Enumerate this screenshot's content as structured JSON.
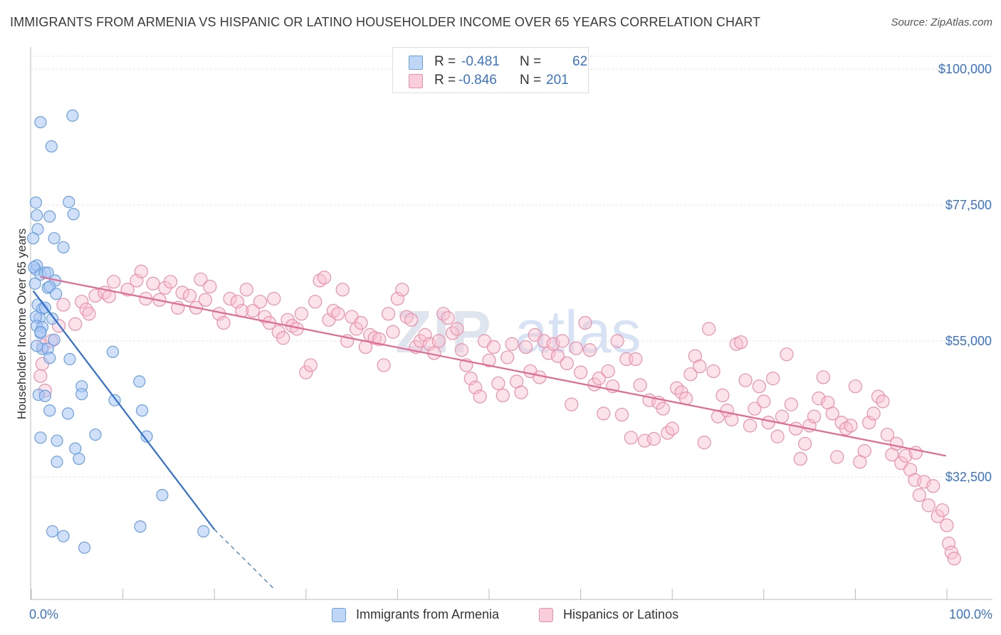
{
  "title": "IMMIGRANTS FROM ARMENIA VS HISPANIC OR LATINO HOUSEHOLDER INCOME OVER 65 YEARS CORRELATION CHART",
  "source": "Source: ZipAtlas.com",
  "legend_top": [
    {
      "r_label": "R =",
      "r_value": "-0.481",
      "n_label": "N =",
      "n_value": "62"
    },
    {
      "r_label": "R =",
      "r_value": "-0.846",
      "n_label": "N =",
      "n_value": "201"
    }
  ],
  "colors": {
    "armenia_fill": "#a9c6f2",
    "armenia_stroke": "#6a9fe0",
    "armenia_line": "#2f6fd0",
    "hispanic_fill": "#f7c0d0",
    "hispanic_stroke": "#ec8fab",
    "hispanic_line": "#e06a92",
    "tick_text": "#3b73c6",
    "grid": "#e3e3e3"
  },
  "chart_data": {
    "type": "scatter",
    "xlabel": "",
    "ylabel": "Householder Income Over 65 years",
    "xlim": [
      0,
      100
    ],
    "ylim": [
      13500,
      103000
    ],
    "x_tick_labels": [
      "0.0%",
      "100.0%"
    ],
    "y_ticks": [
      32500,
      55000,
      77500,
      100000
    ],
    "y_tick_labels": [
      "$32,500",
      "$55,000",
      "$77,500",
      "$100,000"
    ],
    "grid": true,
    "legend_position": "bottom",
    "watermark": "ZIPatlas",
    "series": [
      {
        "name": "Immigrants from Armenia",
        "trend": {
          "x": [
            0.2,
            20.0
          ],
          "y": [
            63300,
            23800
          ],
          "dashed_to": {
            "x": 26.5,
            "y": 14000
          }
        },
        "points": [
          [
            1.0,
            91200
          ],
          [
            4.5,
            92300
          ],
          [
            2.2,
            87200
          ],
          [
            0.5,
            77900
          ],
          [
            4.1,
            78000
          ],
          [
            2.0,
            75600
          ],
          [
            0.6,
            75800
          ],
          [
            4.6,
            76000
          ],
          [
            0.7,
            73500
          ],
          [
            3.5,
            70500
          ],
          [
            0.2,
            72000
          ],
          [
            2.5,
            72000
          ],
          [
            0.5,
            66800
          ],
          [
            0.6,
            67500
          ],
          [
            0.3,
            67200
          ],
          [
            1.0,
            66000
          ],
          [
            1.5,
            66300
          ],
          [
            1.8,
            66300
          ],
          [
            2.6,
            65000
          ],
          [
            0.4,
            64500
          ],
          [
            1.8,
            63800
          ],
          [
            2.0,
            64000
          ],
          [
            2.7,
            62800
          ],
          [
            0.7,
            61000
          ],
          [
            1.2,
            60300
          ],
          [
            1.5,
            60500
          ],
          [
            0.9,
            58800
          ],
          [
            0.5,
            59000
          ],
          [
            0.6,
            57500
          ],
          [
            1.2,
            57300
          ],
          [
            1.0,
            56300
          ],
          [
            2.3,
            58700
          ],
          [
            2.5,
            55200
          ],
          [
            1.2,
            53700
          ],
          [
            1.8,
            53700
          ],
          [
            0.6,
            54200
          ],
          [
            2.0,
            52200
          ],
          [
            4.2,
            52000
          ],
          [
            8.9,
            53200
          ],
          [
            5.5,
            47500
          ],
          [
            11.8,
            48300
          ],
          [
            0.8,
            46100
          ],
          [
            1.5,
            45900
          ],
          [
            5.5,
            46200
          ],
          [
            9.1,
            45200
          ],
          [
            12.1,
            43500
          ],
          [
            4.0,
            43000
          ],
          [
            2.0,
            43500
          ],
          [
            1.0,
            39000
          ],
          [
            2.8,
            38500
          ],
          [
            7.0,
            39500
          ],
          [
            12.6,
            39200
          ],
          [
            4.8,
            37200
          ],
          [
            5.2,
            35500
          ],
          [
            2.8,
            35000
          ],
          [
            14.3,
            29500
          ],
          [
            2.3,
            23500
          ],
          [
            3.5,
            22700
          ],
          [
            11.9,
            24300
          ],
          [
            18.8,
            23500
          ],
          [
            5.8,
            20800
          ],
          [
            1.0,
            56500
          ]
        ]
      },
      {
        "name": "Hispanics or Latinos",
        "trend": {
          "x": [
            1.0,
            99.9
          ],
          "y": [
            65600,
            36000
          ]
        },
        "points": [
          [
            1.3,
            54200
          ],
          [
            2.2,
            55000
          ],
          [
            1.2,
            51200
          ],
          [
            1.0,
            49200
          ],
          [
            1.5,
            46800
          ],
          [
            3.0,
            57500
          ],
          [
            3.5,
            61000
          ],
          [
            4.8,
            57800
          ],
          [
            5.5,
            61500
          ],
          [
            6.0,
            60200
          ],
          [
            6.3,
            59500
          ],
          [
            7.0,
            62500
          ],
          [
            8.0,
            63000
          ],
          [
            8.5,
            62400
          ],
          [
            9.0,
            64800
          ],
          [
            10.5,
            63500
          ],
          [
            11.5,
            65000
          ],
          [
            12.0,
            66500
          ],
          [
            12.5,
            62000
          ],
          [
            13.3,
            64500
          ],
          [
            14.0,
            61800
          ],
          [
            14.6,
            63800
          ],
          [
            15.2,
            64800
          ],
          [
            16.0,
            60500
          ],
          [
            16.5,
            63000
          ],
          [
            17.3,
            62500
          ],
          [
            18.0,
            60500
          ],
          [
            18.5,
            65200
          ],
          [
            19.0,
            61800
          ],
          [
            19.5,
            64000
          ],
          [
            20.5,
            59500
          ],
          [
            21.0,
            58000
          ],
          [
            21.7,
            62000
          ],
          [
            22.5,
            61500
          ],
          [
            23.0,
            60000
          ],
          [
            23.5,
            63500
          ],
          [
            24.2,
            60000
          ],
          [
            25.0,
            61500
          ],
          [
            25.5,
            59000
          ],
          [
            26.0,
            58000
          ],
          [
            26.5,
            62000
          ],
          [
            27.0,
            56500
          ],
          [
            27.5,
            55500
          ],
          [
            28.0,
            58500
          ],
          [
            28.5,
            57500
          ],
          [
            29.0,
            57000
          ],
          [
            29.5,
            59500
          ],
          [
            30.0,
            49800
          ],
          [
            30.5,
            51000
          ],
          [
            31.0,
            61500
          ],
          [
            31.5,
            65000
          ],
          [
            32.0,
            65500
          ],
          [
            32.5,
            58500
          ],
          [
            33.0,
            60000
          ],
          [
            33.5,
            59500
          ],
          [
            34.0,
            63500
          ],
          [
            34.5,
            55000
          ],
          [
            35.0,
            59000
          ],
          [
            35.5,
            57000
          ],
          [
            36.0,
            58000
          ],
          [
            36.5,
            54000
          ],
          [
            37.0,
            56000
          ],
          [
            37.5,
            55500
          ],
          [
            38.0,
            55300
          ],
          [
            38.5,
            51000
          ],
          [
            39.0,
            59500
          ],
          [
            39.5,
            56500
          ],
          [
            40.0,
            62000
          ],
          [
            40.5,
            63500
          ],
          [
            41.0,
            59000
          ],
          [
            41.5,
            58500
          ],
          [
            42.0,
            54000
          ],
          [
            42.5,
            55000
          ],
          [
            43.0,
            56000
          ],
          [
            43.5,
            54500
          ],
          [
            44.0,
            53000
          ],
          [
            44.5,
            55000
          ],
          [
            45.0,
            59500
          ],
          [
            45.5,
            58800
          ],
          [
            46.0,
            56300
          ],
          [
            46.5,
            57000
          ],
          [
            47.0,
            53500
          ],
          [
            47.5,
            51000
          ],
          [
            48.0,
            48800
          ],
          [
            48.5,
            47300
          ],
          [
            49.0,
            45800
          ],
          [
            49.5,
            55000
          ],
          [
            50.0,
            51800
          ],
          [
            50.5,
            54000
          ],
          [
            51.0,
            48000
          ],
          [
            51.5,
            46000
          ],
          [
            52.0,
            52300
          ],
          [
            52.5,
            54500
          ],
          [
            53.0,
            48300
          ],
          [
            53.5,
            46500
          ],
          [
            54.0,
            54000
          ],
          [
            54.5,
            50000
          ],
          [
            55.0,
            56000
          ],
          [
            55.5,
            49000
          ],
          [
            56.0,
            55000
          ],
          [
            56.5,
            53000
          ],
          [
            57.0,
            54500
          ],
          [
            57.5,
            52500
          ],
          [
            58.0,
            55000
          ],
          [
            58.5,
            51300
          ],
          [
            59.0,
            44500
          ],
          [
            59.5,
            53800
          ],
          [
            60.0,
            49800
          ],
          [
            60.5,
            58000
          ],
          [
            61.0,
            53500
          ],
          [
            61.5,
            47800
          ],
          [
            62.0,
            48800
          ],
          [
            62.5,
            43000
          ],
          [
            63.0,
            50000
          ],
          [
            63.5,
            47500
          ],
          [
            64.0,
            55000
          ],
          [
            64.5,
            42800
          ],
          [
            65.0,
            52000
          ],
          [
            65.5,
            39000
          ],
          [
            66.0,
            52000
          ],
          [
            66.5,
            47700
          ],
          [
            67.0,
            38500
          ],
          [
            67.5,
            45200
          ],
          [
            68.0,
            38800
          ],
          [
            68.5,
            44800
          ],
          [
            69.0,
            43800
          ],
          [
            69.5,
            39800
          ],
          [
            70.0,
            40500
          ],
          [
            70.5,
            47200
          ],
          [
            71.0,
            46500
          ],
          [
            71.5,
            45500
          ],
          [
            72.0,
            49500
          ],
          [
            72.5,
            52500
          ],
          [
            73.0,
            50800
          ],
          [
            73.5,
            38200
          ],
          [
            74.0,
            57000
          ],
          [
            74.5,
            50000
          ],
          [
            75.0,
            42500
          ],
          [
            75.5,
            46000
          ],
          [
            76.0,
            43500
          ],
          [
            76.5,
            42000
          ],
          [
            77.0,
            54500
          ],
          [
            77.5,
            54800
          ],
          [
            78.0,
            48500
          ],
          [
            78.5,
            41000
          ],
          [
            79.0,
            43800
          ],
          [
            79.5,
            47500
          ],
          [
            80.0,
            45000
          ],
          [
            80.5,
            41500
          ],
          [
            81.0,
            48800
          ],
          [
            81.5,
            39200
          ],
          [
            82.0,
            42500
          ],
          [
            82.5,
            52800
          ],
          [
            83.0,
            44500
          ],
          [
            83.5,
            40500
          ],
          [
            84.0,
            35500
          ],
          [
            84.5,
            38000
          ],
          [
            85.0,
            41000
          ],
          [
            85.5,
            42500
          ],
          [
            86.0,
            45500
          ],
          [
            86.5,
            49000
          ],
          [
            87.0,
            44800
          ],
          [
            87.5,
            43000
          ],
          [
            88.0,
            35800
          ],
          [
            88.5,
            41500
          ],
          [
            89.0,
            40500
          ],
          [
            89.5,
            41000
          ],
          [
            90.0,
            47500
          ],
          [
            90.5,
            35000
          ],
          [
            91.0,
            36800
          ],
          [
            91.5,
            41500
          ],
          [
            92.0,
            43000
          ],
          [
            92.5,
            45800
          ],
          [
            93.0,
            45000
          ],
          [
            93.5,
            39500
          ],
          [
            94.0,
            36200
          ],
          [
            94.5,
            38000
          ],
          [
            95.0,
            34800
          ],
          [
            95.5,
            36000
          ],
          [
            96.0,
            33700
          ],
          [
            96.5,
            32000
          ],
          [
            97.0,
            29500
          ],
          [
            97.5,
            31700
          ],
          [
            98.0,
            27800
          ],
          [
            98.5,
            31000
          ],
          [
            99.0,
            26000
          ],
          [
            99.5,
            27000
          ],
          [
            100.0,
            24500
          ],
          [
            100.2,
            21500
          ],
          [
            100.5,
            20000
          ],
          [
            100.8,
            19000
          ],
          [
            96.6,
            36500
          ]
        ]
      }
    ]
  }
}
